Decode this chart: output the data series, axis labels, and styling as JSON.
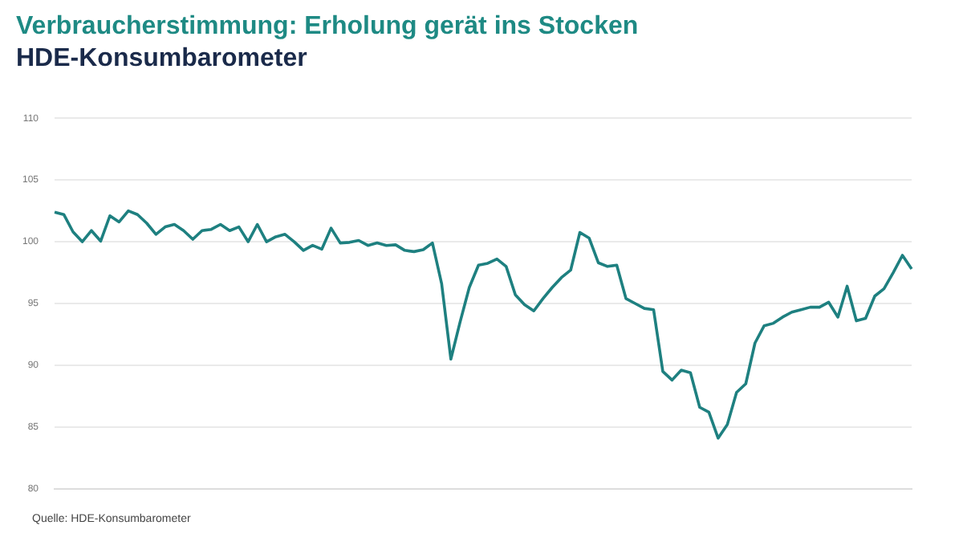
{
  "chart_data": {
    "type": "line",
    "title": "Verbraucherstimmung: Erholung gerät ins Stocken",
    "subtitle": "HDE-Konsumbarometer",
    "categories": [
      null,
      null,
      null,
      null,
      null,
      null,
      null,
      null,
      null,
      null,
      null,
      null,
      null,
      null,
      null,
      null,
      null,
      null,
      null,
      null,
      null,
      null,
      null,
      null,
      null,
      null,
      null,
      null,
      null,
      null,
      null,
      null,
      null,
      null,
      null,
      null,
      null,
      null,
      null,
      null,
      null,
      null,
      null,
      null,
      null,
      null,
      null,
      null,
      null,
      null,
      null,
      null,
      null,
      null,
      null,
      null,
      null,
      null,
      null,
      null,
      null,
      null,
      null,
      null,
      null,
      null,
      null,
      null,
      null,
      null,
      null,
      null,
      null,
      null,
      null,
      null,
      null,
      null,
      null,
      null,
      null,
      null,
      null,
      null,
      null,
      null,
      null,
      null,
      null,
      null,
      null,
      null,
      null,
      null
    ],
    "series": [
      {
        "color": "#1e8080",
        "values": [
          102.4,
          102.2,
          100.8,
          100,
          100.9,
          100.05,
          102.1,
          101.6,
          102.5,
          102.2,
          101.5,
          100.6,
          101.2,
          101.4,
          100.9,
          100.2,
          100.9,
          101.0,
          101.4,
          100.9,
          101.2,
          100,
          101.4,
          100,
          100.4,
          100.6,
          100,
          99.3,
          99.7,
          99.4,
          101.1,
          99.9,
          99.95,
          100.1,
          99.7,
          99.9,
          99.7,
          99.75,
          99.3,
          99.2,
          99.35,
          99.9,
          96.6,
          90.5,
          93.5,
          96.3,
          98.1,
          98.25,
          98.6,
          98.0,
          95.7,
          94.9,
          94.4,
          95.4,
          96.3,
          97.1,
          97.7,
          100.75,
          100.3,
          98.3,
          98.0,
          98.1,
          95.4,
          95.0,
          94.6,
          94.5,
          89.5,
          88.8,
          89.6,
          89.4,
          86.6,
          86.2,
          84.1,
          85.2,
          87.8,
          88.5,
          91.8,
          93.2,
          93.4,
          93.9,
          94.3,
          94.5,
          94.7,
          94.7,
          95.1,
          93.9,
          96.4,
          93.6,
          93.8,
          95.6,
          96.2,
          97.5,
          98.9,
          97.8
        ]
      }
    ],
    "ylim": [
      80,
      110
    ],
    "yticks": [
      80,
      85,
      90,
      95,
      100,
      105,
      110
    ],
    "grid": "y",
    "tick_labels": "y",
    "legend": false,
    "marker": "none",
    "line_style": "solid",
    "annotations": [
      "Quelle: HDE-Konsumbarometer"
    ]
  }
}
